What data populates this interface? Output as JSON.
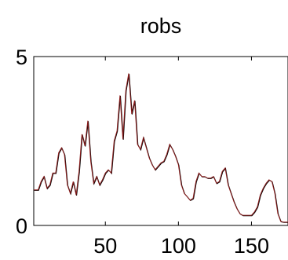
{
  "chart_data": {
    "type": "line",
    "title": "robs",
    "xlabel": "",
    "ylabel": "",
    "xlim": [
      1,
      175
    ],
    "ylim": [
      0,
      5
    ],
    "x_ticks": [
      50,
      100,
      150
    ],
    "y_ticks": [
      0,
      5
    ],
    "grid": false,
    "line_color": "#8b1a1a",
    "series": [
      {
        "x": [
          1,
          4,
          6,
          8,
          10,
          12,
          14,
          16,
          18,
          20,
          22,
          24,
          26,
          28,
          30,
          32,
          34,
          36,
          38,
          40,
          42,
          44,
          46,
          48,
          50,
          52,
          54,
          56,
          58,
          60,
          62,
          64,
          66,
          68,
          70,
          72,
          74,
          76,
          78,
          80,
          82,
          84,
          86,
          88,
          90,
          92,
          94,
          96,
          98,
          100,
          102,
          104,
          106,
          108,
          110,
          112,
          114,
          116,
          118,
          120,
          122,
          124,
          126,
          128,
          130,
          132,
          134,
          136,
          138,
          140,
          142,
          144,
          146,
          148,
          150,
          152,
          154,
          156,
          158,
          160,
          162,
          164,
          166,
          168,
          170,
          172,
          174,
          175
        ],
        "values": [
          1.05,
          1.05,
          1.3,
          1.45,
          1.1,
          1.2,
          1.55,
          1.55,
          2.15,
          2.3,
          2.1,
          1.2,
          0.95,
          1.3,
          0.9,
          1.6,
          2.7,
          2.35,
          3.1,
          1.9,
          1.25,
          1.45,
          1.2,
          1.35,
          1.55,
          1.65,
          1.55,
          2.5,
          2.8,
          3.85,
          2.55,
          4.0,
          4.5,
          3.3,
          3.7,
          2.4,
          2.25,
          2.6,
          2.3,
          2.0,
          1.8,
          1.65,
          1.75,
          1.85,
          1.9,
          2.1,
          2.4,
          2.25,
          2.05,
          1.8,
          1.2,
          0.95,
          0.85,
          0.75,
          0.8,
          1.3,
          1.55,
          1.45,
          1.45,
          1.4,
          1.4,
          1.45,
          1.25,
          1.3,
          1.6,
          1.7,
          1.2,
          0.95,
          0.7,
          0.5,
          0.35,
          0.3,
          0.3,
          0.3,
          0.3,
          0.4,
          0.55,
          0.9,
          1.1,
          1.25,
          1.35,
          1.3,
          0.95,
          0.35,
          0.12,
          0.1,
          0.1,
          0.1
        ]
      }
    ]
  }
}
